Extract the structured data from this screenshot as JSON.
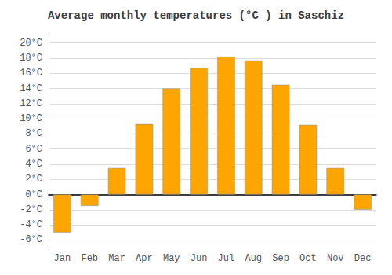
{
  "chart_data": {
    "type": "bar",
    "title": "Average monthly temperatures (°C ) in Saschiz",
    "categories": [
      "Jan",
      "Feb",
      "Mar",
      "Apr",
      "May",
      "Jun",
      "Jul",
      "Aug",
      "Sep",
      "Oct",
      "Nov",
      "Dec"
    ],
    "values": [
      -5.0,
      -1.5,
      3.5,
      9.3,
      14.0,
      16.7,
      18.2,
      17.7,
      14.5,
      9.2,
      3.5,
      -2.0
    ],
    "color": "#FFA500",
    "ylim": [
      -7,
      21
    ],
    "yticks": [
      {
        "value": -6,
        "label": "-6°C"
      },
      {
        "value": -4,
        "label": "-4°C"
      },
      {
        "value": -2,
        "label": "-2°C"
      },
      {
        "value": 0,
        "label": "0°C"
      },
      {
        "value": 2,
        "label": "2°C"
      },
      {
        "value": 4,
        "label": "4°C"
      },
      {
        "value": 6,
        "label": "6°C"
      },
      {
        "value": 8,
        "label": "8°C"
      },
      {
        "value": 10,
        "label": "10°C"
      },
      {
        "value": 12,
        "label": "12°C"
      },
      {
        "value": 14,
        "label": "14°C"
      },
      {
        "value": 16,
        "label": "16°C"
      },
      {
        "value": 18,
        "label": "18°C"
      },
      {
        "value": 20,
        "label": "20°C"
      }
    ],
    "grid": true
  }
}
